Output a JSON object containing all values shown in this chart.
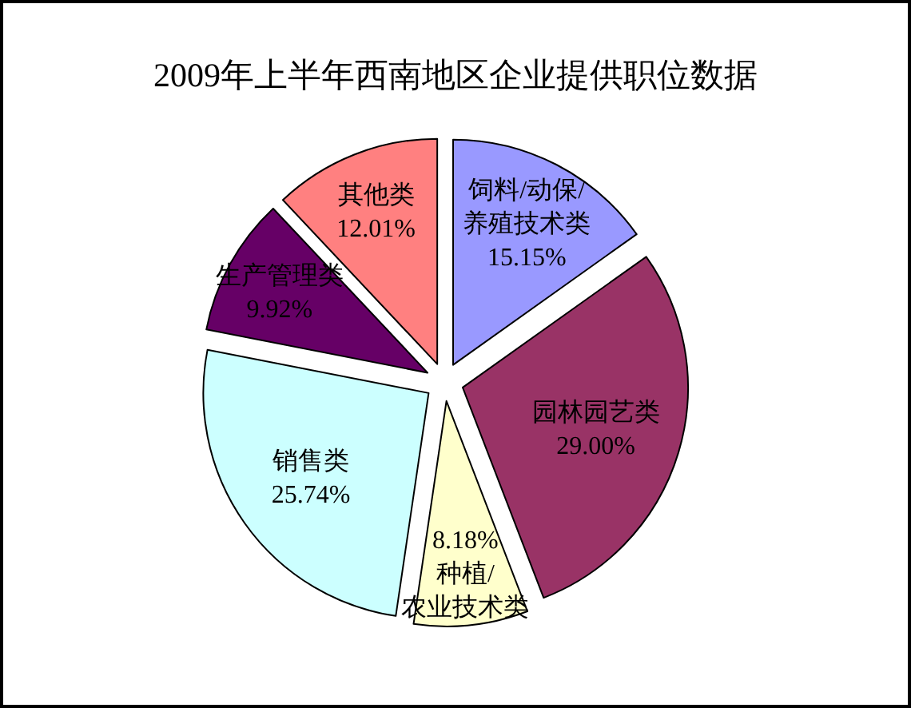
{
  "chart_data": {
    "type": "pie",
    "title": "2009年上半年西南地区企业提供职位数据",
    "categories": [
      "饲料/动保/养殖技术类",
      "园林园艺类",
      "种植/农业技术类",
      "销售类",
      "生产管理类",
      "其他类"
    ],
    "values": [
      15.15,
      29.0,
      8.18,
      25.74,
      9.92,
      12.01
    ],
    "value_labels": [
      "15.15%",
      "29.00%",
      "8.18%",
      "25.74%",
      "9.92%",
      "12.01%"
    ],
    "colors": [
      "#9999ff",
      "#993366",
      "#ffffcc",
      "#ccffff",
      "#660066",
      "#ff8080"
    ]
  }
}
